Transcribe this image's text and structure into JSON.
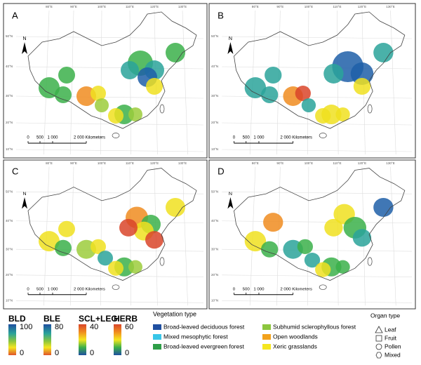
{
  "panels": [
    {
      "label": "A"
    },
    {
      "label": "B"
    },
    {
      "label": "C"
    },
    {
      "label": "D"
    }
  ],
  "map": {
    "north_label": "N",
    "scale_labels": [
      "0",
      "500",
      "1 000",
      "2 000 Kilometers"
    ],
    "lat_labels": [
      "50°N",
      "40°N",
      "30°N",
      "20°N",
      "10°N"
    ],
    "lon_labels": [
      "80°E",
      "90°E",
      "100°E",
      "110°E",
      "120°E",
      "130°E"
    ]
  },
  "colorbars": [
    {
      "name": "BLD",
      "max": 100,
      "min": 0
    },
    {
      "name": "BLE",
      "max": 80,
      "min": 0
    },
    {
      "name": "SCL+LEG",
      "max": 40,
      "min": 0
    },
    {
      "name": "HERB",
      "max": 60,
      "min": 0
    }
  ],
  "vegetation_legend": {
    "title": "Vegetation type",
    "items": [
      {
        "label": "Broad-leaved deciduous forest",
        "color": "#1f4fa0"
      },
      {
        "label": "Mixed mesophytic forest",
        "color": "#38c6e8"
      },
      {
        "label": "Broad-leaved evergreen forest",
        "color": "#2e9e48"
      },
      {
        "label": "Subhumid sclerophyllous forest",
        "color": "#8cc63e"
      },
      {
        "label": "Open woodlands",
        "color": "#f2a21c"
      },
      {
        "label": "Xeric grasslands",
        "color": "#f5e620"
      }
    ]
  },
  "organ_legend": {
    "title": "Organ type",
    "items": [
      "Leaf",
      "Fruit",
      "Pollen",
      "Mixed"
    ]
  }
}
